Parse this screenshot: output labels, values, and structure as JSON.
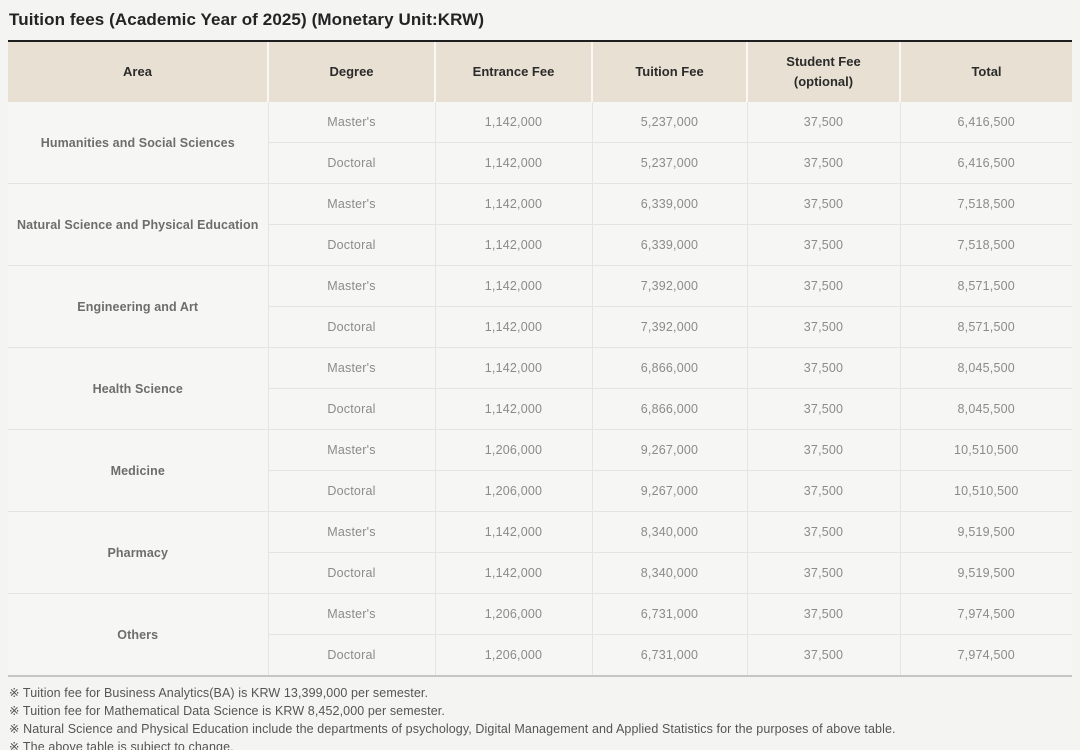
{
  "title": "Tuition fees (Academic Year of 2025) (Monetary Unit:KRW)",
  "colors": {
    "page_background": "#f4f4f3",
    "header_background": "#e8e1d3",
    "header_top_border": "#1e1e1e",
    "cell_background": "#f6f6f5",
    "grid_line": "#e4e4e2",
    "table_bottom_border": "#c6c6c4",
    "title_text": "#232323",
    "header_text": "#2b2b2b",
    "cell_text": "#8b8b8b",
    "area_text": "#6d6d6d",
    "footnote_text": "#555555"
  },
  "table": {
    "headers": {
      "area": "Area",
      "degree": "Degree",
      "entrance_fee": "Entrance Fee",
      "tuition_fee": "Tuition Fee",
      "student_fee_line1": "Student Fee",
      "student_fee_line2": "(optional)",
      "total": "Total"
    },
    "groups": [
      {
        "area": "Humanities and Social Sciences",
        "rows": [
          {
            "degree": "Master's",
            "entrance_fee": "1,142,000",
            "tuition_fee": "5,237,000",
            "student_fee": "37,500",
            "total": "6,416,500"
          },
          {
            "degree": "Doctoral",
            "entrance_fee": "1,142,000",
            "tuition_fee": "5,237,000",
            "student_fee": "37,500",
            "total": "6,416,500"
          }
        ]
      },
      {
        "area": "Natural Science and Physical Education",
        "rows": [
          {
            "degree": "Master's",
            "entrance_fee": "1,142,000",
            "tuition_fee": "6,339,000",
            "student_fee": "37,500",
            "total": "7,518,500"
          },
          {
            "degree": "Doctoral",
            "entrance_fee": "1,142,000",
            "tuition_fee": "6,339,000",
            "student_fee": "37,500",
            "total": "7,518,500"
          }
        ]
      },
      {
        "area": "Engineering and Art",
        "rows": [
          {
            "degree": "Master's",
            "entrance_fee": "1,142,000",
            "tuition_fee": "7,392,000",
            "student_fee": "37,500",
            "total": "8,571,500"
          },
          {
            "degree": "Doctoral",
            "entrance_fee": "1,142,000",
            "tuition_fee": "7,392,000",
            "student_fee": "37,500",
            "total": "8,571,500"
          }
        ]
      },
      {
        "area": "Health Science",
        "rows": [
          {
            "degree": "Master's",
            "entrance_fee": "1,142,000",
            "tuition_fee": "6,866,000",
            "student_fee": "37,500",
            "total": "8,045,500"
          },
          {
            "degree": "Doctoral",
            "entrance_fee": "1,142,000",
            "tuition_fee": "6,866,000",
            "student_fee": "37,500",
            "total": "8,045,500"
          }
        ]
      },
      {
        "area": "Medicine",
        "rows": [
          {
            "degree": "Master's",
            "entrance_fee": "1,206,000",
            "tuition_fee": "9,267,000",
            "student_fee": "37,500",
            "total": "10,510,500"
          },
          {
            "degree": "Doctoral",
            "entrance_fee": "1,206,000",
            "tuition_fee": "9,267,000",
            "student_fee": "37,500",
            "total": "10,510,500"
          }
        ]
      },
      {
        "area": "Pharmacy",
        "rows": [
          {
            "degree": "Master's",
            "entrance_fee": "1,142,000",
            "tuition_fee": "8,340,000",
            "student_fee": "37,500",
            "total": "9,519,500"
          },
          {
            "degree": "Doctoral",
            "entrance_fee": "1,142,000",
            "tuition_fee": "8,340,000",
            "student_fee": "37,500",
            "total": "9,519,500"
          }
        ]
      },
      {
        "area": "Others",
        "rows": [
          {
            "degree": "Master's",
            "entrance_fee": "1,206,000",
            "tuition_fee": "6,731,000",
            "student_fee": "37,500",
            "total": "7,974,500"
          },
          {
            "degree": "Doctoral",
            "entrance_fee": "1,206,000",
            "tuition_fee": "6,731,000",
            "student_fee": "37,500",
            "total": "7,974,500"
          }
        ]
      }
    ]
  },
  "footnotes": [
    "※ Tuition fee for Business Analytics(BA) is KRW 13,399,000 per semester.",
    "※ Tuition fee for Mathematical Data Science is KRW 8,452,000 per semester.",
    "※ Natural Science and Physical Education include the departments of psychology, Digital Management and Applied Statistics for the purposes of above table.",
    "※ The above table is subject to change."
  ]
}
